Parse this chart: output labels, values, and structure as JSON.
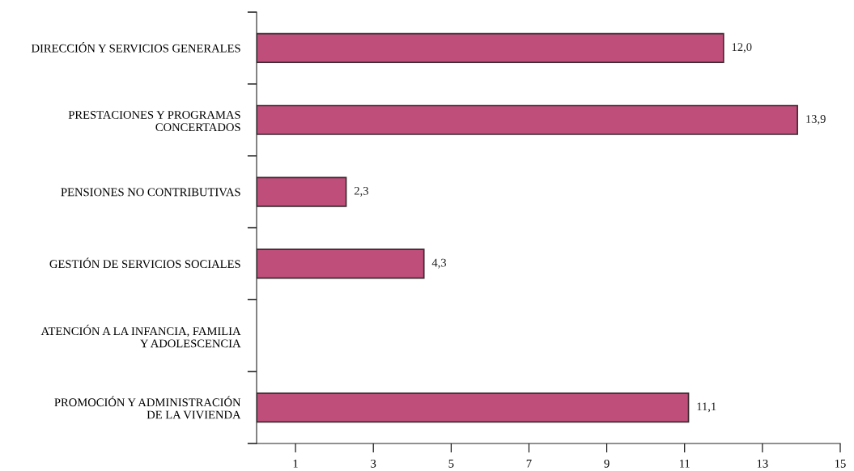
{
  "chart_data": {
    "type": "bar",
    "orientation": "horizontal",
    "categories": [
      "DIRECCIÓN Y SERVICIOS GENERALES",
      "PRESTACIONES Y PROGRAMAS\nCONCERTADOS",
      "PENSIONES NO CONTRIBUTIVAS",
      "GESTIÓN DE SERVICIOS SOCIALES",
      "ATENCIÓN A LA INFANCIA, FAMILIA\nY ADOLESCENCIA",
      "PROMOCIÓN Y ADMINISTRACIÓN\nDE LA VIVIENDA"
    ],
    "values": [
      12.0,
      13.9,
      2.3,
      4.3,
      null,
      11.1
    ],
    "value_labels": [
      "12,0",
      "13,9",
      "2,3",
      "4,3",
      null,
      "11,1"
    ],
    "color": "#bf4f7a",
    "xlim": [
      0,
      15
    ],
    "xticks": [
      1,
      3,
      5,
      7,
      9,
      11,
      13,
      15
    ],
    "grid": false,
    "legend": false
  }
}
